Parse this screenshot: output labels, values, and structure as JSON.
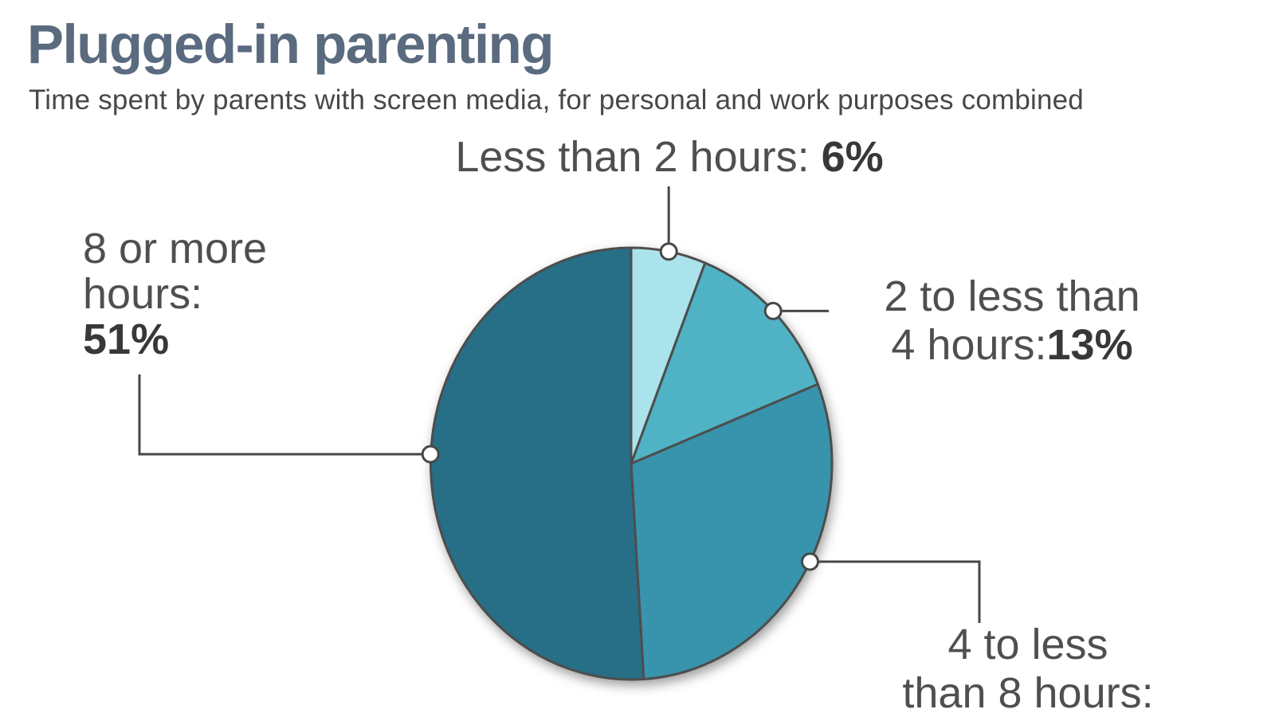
{
  "header": {
    "title": "Plugged-in parenting",
    "subtitle": "Time spent by parents with screen media, for personal and work purposes combined"
  },
  "chart_data": {
    "type": "pie",
    "title": "Plugged-in parenting",
    "subtitle": "Time spent by parents with screen media, for personal and work purposes combined",
    "start_angle_deg": 0,
    "direction": "clockwise",
    "legend_position": "callout-labels",
    "slices": [
      {
        "label": "Less than 2 hours",
        "value": 6,
        "color": "#abe3ec",
        "display": {
          "line1": "Less than 2 hours: ",
          "pct": "6%"
        }
      },
      {
        "label": "2 to less than 4 hours",
        "value": 13,
        "color": "#4fb3c5",
        "display": {
          "line1": "2 to less than",
          "line2": "4 hours:",
          "pct": "13%"
        }
      },
      {
        "label": "4 to less than 8 hours",
        "value": 30,
        "color": "#3893ac",
        "display": {
          "line1": "4 to less",
          "line2": "than 8 hours:",
          "pct": ""
        }
      },
      {
        "label": "8 or more hours",
        "value": 51,
        "color": "#276e87",
        "display": {
          "line1": "8 or more",
          "line2": "hours:",
          "pct": "51%"
        }
      }
    ],
    "colors": {
      "slice_stroke": "#4d4d4d",
      "leader_line": "#474747",
      "title": "#5a6b80",
      "label_text": "#4f4f4f",
      "label_value": "#383838"
    }
  }
}
